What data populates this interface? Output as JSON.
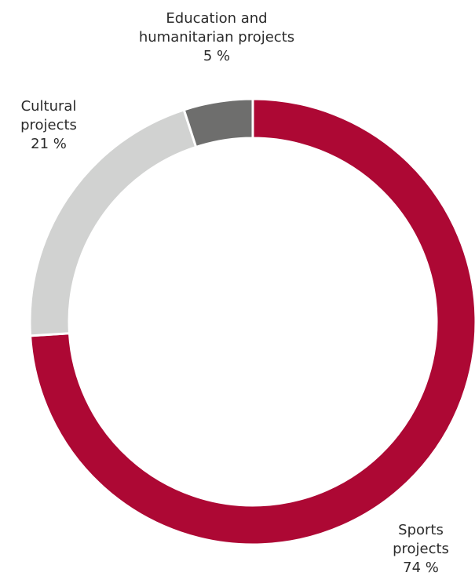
{
  "chart_data": {
    "type": "pie",
    "donut": true,
    "slices": [
      {
        "name": "Sports projects",
        "line1": "Sports",
        "line2": "projects",
        "value": 74,
        "value_label": "74 %",
        "color": "#ad0834"
      },
      {
        "name": "Cultural projects",
        "line1": "Cultural",
        "line2": "projects",
        "value": 21,
        "value_label": "21 %",
        "color": "#d1d2d1"
      },
      {
        "name": "Education and humanitarian projects",
        "line1": "Education and",
        "line2": "humanitarian projects",
        "value": 5,
        "value_label": "5 %",
        "color": "#6e6e6d"
      }
    ],
    "legend": "none",
    "separator_color": "#ffffff"
  }
}
